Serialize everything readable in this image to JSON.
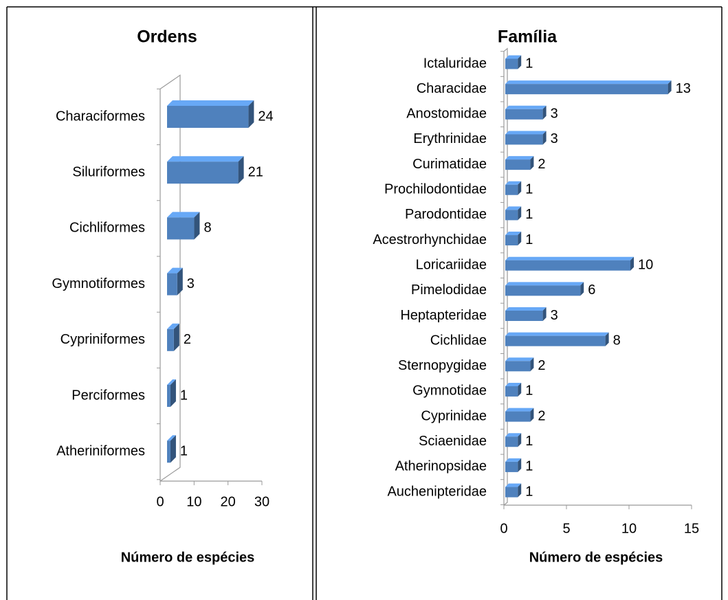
{
  "chart_data": [
    {
      "type": "bar",
      "orientation": "horizontal",
      "title": "Ordens",
      "xlabel": "Número de espécies",
      "categories": [
        "Characiformes",
        "Siluriformes",
        "Cichliformes",
        "Gymnotiformes",
        "Cypriniformes",
        "Perciformes",
        "Atheriniformes"
      ],
      "values": [
        24,
        21,
        8,
        3,
        2,
        1,
        1
      ],
      "color": "#4f81bd",
      "xlim": [
        0,
        30
      ],
      "xticks": [
        0,
        10,
        20,
        30
      ]
    },
    {
      "type": "bar",
      "orientation": "horizontal",
      "title": "Família",
      "xlabel": "Número de espécies",
      "categories": [
        "Ictaluridae",
        "Characidae",
        "Anostomidae",
        "Erythrinidae",
        "Curimatidae",
        "Prochilodontidae",
        "Parodontidae",
        "Acestrorhynchidae",
        "Loricariidae",
        "Pimelodidae",
        "Heptapteridae",
        "Cichlidae",
        "Sternopygidae",
        "Gymnotidae",
        "Cyprinidae",
        "Sciaenidae",
        "Atherinopsidae",
        "Auchenipteridae"
      ],
      "values": [
        1,
        13,
        3,
        3,
        2,
        1,
        1,
        1,
        10,
        6,
        3,
        8,
        2,
        1,
        2,
        1,
        1,
        1
      ],
      "color": "#4f81bd",
      "xlim": [
        0,
        15
      ],
      "xticks": [
        0,
        5,
        10,
        15
      ]
    }
  ]
}
